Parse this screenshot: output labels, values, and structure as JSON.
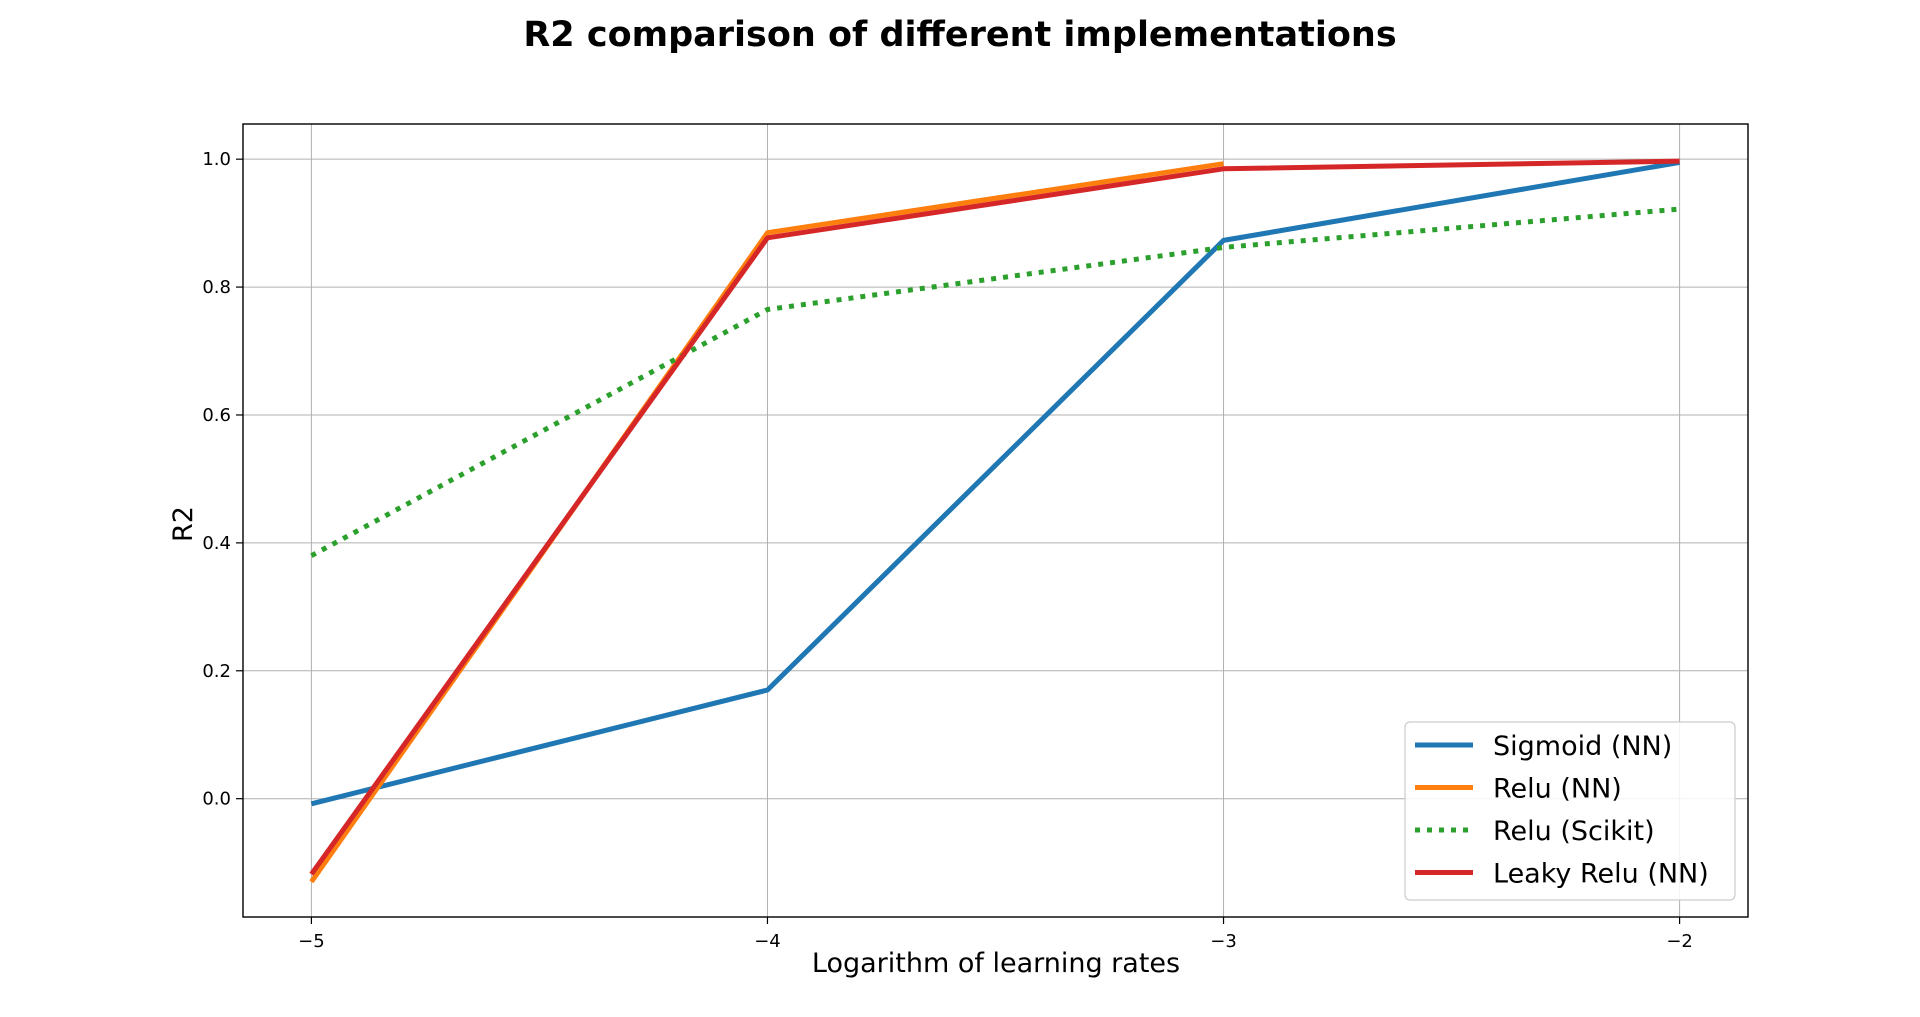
{
  "chart_data": {
    "type": "line",
    "title": "R2 comparison of different implementations",
    "xlabel": "Logarithm of learning rates",
    "ylabel": "R2",
    "x": [
      -5,
      -4,
      -3,
      -2
    ],
    "xlim": [
      -5.15,
      -1.85
    ],
    "ylim": [
      -0.185,
      1.055
    ],
    "xticks": [
      -5,
      -4,
      -3,
      -2
    ],
    "xtick_labels": [
      "−5",
      "−4",
      "−3",
      "−2"
    ],
    "yticks": [
      0.0,
      0.2,
      0.4,
      0.6,
      0.8,
      1.0
    ],
    "ytick_labels": [
      "0.0",
      "0.2",
      "0.4",
      "0.6",
      "0.8",
      "1.0"
    ],
    "grid": true,
    "legend_position": "lower-right",
    "series": [
      {
        "name": "Sigmoid (NN)",
        "color": "#1f77b4",
        "style": "solid",
        "values": [
          -0.008,
          0.17,
          0.873,
          0.995
        ]
      },
      {
        "name": "Relu (NN)",
        "color": "#ff7f0e",
        "style": "solid",
        "values": [
          -0.13,
          0.885,
          0.993,
          null
        ]
      },
      {
        "name": "Relu (Scikit)",
        "color": "#2ca02c",
        "style": "dotted",
        "values": [
          0.38,
          0.765,
          0.862,
          0.922
        ]
      },
      {
        "name": "Leaky Relu (NN)",
        "color": "#d62728",
        "style": "solid",
        "values": [
          -0.118,
          0.877,
          0.985,
          0.997
        ]
      }
    ]
  }
}
